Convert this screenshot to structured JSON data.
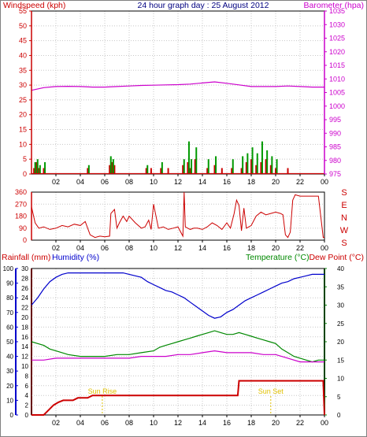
{
  "chart_data": [
    {
      "type": "bar",
      "title": "24 hour graph day : 25 August 2012",
      "left_axis_label": "Windspeed (kph)",
      "right_axis_label": "Barometer (hpa)",
      "left_ylim": [
        0,
        55
      ],
      "left_yticks": [
        "0",
        "5",
        "10",
        "15",
        "20",
        "25",
        "30",
        "35",
        "40",
        "45",
        "50",
        "55"
      ],
      "right_ylim": [
        975,
        1035
      ],
      "right_yticks": [
        "975",
        "980",
        "985",
        "990",
        "995",
        "1000",
        "1005",
        "1010",
        "1015",
        "1020",
        "1025",
        "1030",
        "1035"
      ],
      "xlim": [
        0,
        24
      ],
      "xticks": [
        "02",
        "04",
        "06",
        "08",
        "10",
        "12",
        "14",
        "16",
        "18",
        "20",
        "22",
        "00"
      ],
      "grid": true,
      "colors": {
        "windspeed": "#cc0000",
        "gust": "#009900",
        "barometer": "#cc00cc",
        "axis_left": "#cc0000",
        "axis_right": "#cc00cc",
        "title": "#000080"
      },
      "series": [
        {
          "key": "barometer",
          "axis": "right",
          "x": [
            0,
            1,
            2,
            3,
            4,
            5,
            6,
            7,
            8,
            9,
            10,
            11,
            12,
            13,
            14,
            15,
            16,
            17,
            18,
            19,
            20,
            21,
            22,
            23,
            24
          ],
          "y": [
            1005.8,
            1006.8,
            1007.2,
            1007.3,
            1007.2,
            1007.0,
            1007.0,
            1007.2,
            1007.4,
            1007.6,
            1007.7,
            1007.8,
            1007.9,
            1008.1,
            1008.5,
            1008.9,
            1008.4,
            1007.8,
            1007.2,
            1007.2,
            1007.2,
            1007.4,
            1007.2,
            1007.0,
            1007.0
          ]
        },
        {
          "key": "wind_speed",
          "axis": "left",
          "style": "bars",
          "x": [
            0.2,
            0.4,
            0.6,
            1.0,
            4.6,
            6.4,
            6.6,
            6.8,
            9.4,
            9.8,
            10.6,
            11.2,
            12.4,
            12.8,
            13.0,
            13.4,
            14.4,
            15.0,
            15.6,
            16.4,
            17.2,
            17.6,
            18.0,
            18.4,
            18.8,
            19.2,
            19.6,
            20.0,
            21.0
          ],
          "y": [
            2,
            4,
            2,
            2,
            2,
            3,
            4,
            3,
            2,
            2,
            2,
            2,
            3,
            4,
            2,
            5,
            2,
            3,
            2,
            2,
            2,
            4,
            5,
            3,
            4,
            5,
            3,
            2,
            2
          ]
        },
        {
          "key": "wind_gust",
          "axis": "left",
          "style": "bars",
          "x": [
            0.3,
            0.5,
            0.7,
            1.1,
            4.7,
            6.5,
            6.7,
            9.5,
            10.7,
            12.5,
            12.9,
            13.1,
            13.5,
            14.5,
            15.1,
            16.5,
            17.3,
            17.7,
            18.1,
            18.5,
            18.9,
            19.3,
            19.7,
            20.1
          ],
          "y": [
            4,
            5,
            3,
            4,
            3,
            6,
            5,
            3,
            4,
            5,
            11,
            5,
            9,
            5,
            6,
            5,
            6,
            7,
            9,
            7,
            11,
            8,
            6,
            5
          ]
        }
      ]
    },
    {
      "type": "line",
      "title": "",
      "left_ylim": [
        0,
        360
      ],
      "left_yticks": [
        "0",
        "90",
        "180",
        "270",
        "360"
      ],
      "compass_labels": [
        "S",
        "E",
        "N",
        "W",
        "S"
      ],
      "xlim": [
        0,
        24
      ],
      "xticks": [
        "02",
        "04",
        "06",
        "08",
        "10",
        "12",
        "14",
        "16",
        "18",
        "20",
        "22",
        "00"
      ],
      "grid": true,
      "colors": {
        "direction": "#cc0000",
        "axis": "#cc0000"
      },
      "series": [
        {
          "key": "wind_direction",
          "x": [
            0,
            0.3,
            0.6,
            1,
            1.5,
            2,
            2.5,
            3,
            3.5,
            4,
            4.4,
            4.8,
            5.2,
            5.6,
            6,
            6.4,
            6.5,
            6.8,
            7,
            7.2,
            7.5,
            7.8,
            8,
            8.5,
            9,
            9.3,
            9.6,
            9.8,
            10,
            10.4,
            10.8,
            11.2,
            11.6,
            12,
            12.4,
            12.5,
            12.6,
            12.8,
            13,
            13.3,
            13.6,
            14,
            14.4,
            14.8,
            15.2,
            15.6,
            16,
            16.3,
            16.6,
            16.8,
            17,
            17.2,
            17.4,
            17.6,
            18,
            18.4,
            18.8,
            19.2,
            19.6,
            20,
            20.4,
            20.6,
            20.8,
            21,
            21.2,
            21.4,
            21.6,
            22,
            22.5,
            23,
            23.5,
            23.9,
            24
          ],
          "y": [
            250,
            130,
            90,
            100,
            80,
            90,
            110,
            100,
            120,
            110,
            140,
            40,
            20,
            30,
            25,
            30,
            200,
            230,
            90,
            130,
            180,
            140,
            180,
            130,
            90,
            100,
            150,
            80,
            270,
            90,
            100,
            80,
            90,
            100,
            30,
            360,
            100,
            90,
            80,
            90,
            90,
            80,
            100,
            130,
            110,
            80,
            130,
            90,
            200,
            300,
            260,
            70,
            240,
            90,
            110,
            180,
            210,
            190,
            200,
            210,
            200,
            190,
            40,
            20,
            60,
            300,
            340,
            330,
            330,
            330,
            330,
            20,
            20
          ]
        }
      ]
    },
    {
      "type": "line",
      "title": "",
      "left_axis_labels": [
        "Rainfall (mm)",
        "Humidity (%)"
      ],
      "right_axis_labels": [
        "Temperature (°C)",
        "Dew Point (°C)"
      ],
      "humidity_ylim": [
        0,
        100
      ],
      "humidity_yticks": [
        "0",
        "10",
        "20",
        "30",
        "40",
        "50",
        "60",
        "70",
        "80",
        "90",
        "100"
      ],
      "rain_ylim": [
        0,
        30
      ],
      "rain_yticks": [
        "0",
        "2",
        "4",
        "6",
        "8",
        "10",
        "12",
        "14",
        "16",
        "18",
        "20",
        "22",
        "24",
        "26",
        "28",
        "30"
      ],
      "temp_ylim": [
        0,
        40
      ],
      "temp_yticks": [
        "0",
        "5",
        "10",
        "15",
        "20",
        "25",
        "30",
        "35",
        "40"
      ],
      "xlim": [
        0,
        24
      ],
      "xticks": [
        "02",
        "04",
        "06",
        "08",
        "10",
        "12",
        "14",
        "16",
        "18",
        "20",
        "22",
        "00"
      ],
      "grid": true,
      "annotations": [
        {
          "text": "Sun Rise",
          "x": 5.8
        },
        {
          "text": "Sun Set",
          "x": 19.6
        }
      ],
      "colors": {
        "humidity": "#0000cc",
        "rainfall": "#cc0000",
        "temperature": "#008800",
        "dewpoint": "#cc00cc",
        "sun": "#e0c000",
        "axis_rain": "#cc0000",
        "axis_humidity": "#0000cc",
        "axis_temp": "#008800",
        "label_dewpoint": "#cc0000"
      },
      "series": [
        {
          "key": "humidity",
          "axis": "humidity",
          "x": [
            0,
            0.5,
            1,
            1.5,
            2,
            2.5,
            3,
            4,
            5,
            6,
            7,
            7.5,
            8,
            9,
            9.5,
            10,
            10.5,
            11,
            11.5,
            12,
            12.5,
            13,
            13.5,
            14,
            14.5,
            15,
            15.5,
            16,
            16.5,
            17,
            17.5,
            18,
            18.5,
            19,
            19.5,
            20,
            20.5,
            21,
            21.5,
            22,
            22.5,
            23,
            23.5,
            24
          ],
          "y": [
            75,
            80,
            86,
            91,
            94,
            96,
            97,
            97,
            97,
            97,
            97,
            97,
            96,
            94,
            91,
            89,
            87,
            85,
            84,
            82,
            80,
            77,
            74,
            71,
            68,
            66,
            67,
            70,
            72,
            75,
            78,
            80,
            82,
            84,
            86,
            88,
            90,
            91,
            93,
            94,
            95,
            96,
            96,
            96
          ]
        },
        {
          "key": "temperature",
          "axis": "temp",
          "x": [
            0,
            0.5,
            1,
            1.5,
            2,
            2.5,
            3,
            4,
            5,
            6,
            7,
            8,
            9,
            10,
            10.5,
            11,
            11.5,
            12,
            12.5,
            13,
            13.5,
            14,
            14.5,
            15,
            15.5,
            16,
            16.5,
            17,
            17.5,
            18,
            18.5,
            19,
            19.5,
            20,
            20.5,
            21,
            21.5,
            22,
            22.5,
            23,
            23.5,
            24
          ],
          "y": [
            20,
            19.5,
            19,
            18,
            17.5,
            17,
            16.5,
            16,
            16,
            16,
            16.5,
            16.5,
            17,
            17.5,
            18.5,
            19,
            19.5,
            20,
            20.5,
            21,
            21.5,
            22,
            22.5,
            23,
            22.5,
            22,
            22,
            22.5,
            22,
            21.5,
            21,
            20.5,
            20,
            19.5,
            18,
            17,
            16,
            15.5,
            15,
            14.5,
            15,
            15
          ]
        },
        {
          "key": "dewpoint",
          "axis": "temp",
          "x": [
            0,
            1,
            2,
            3,
            4,
            5,
            6,
            7,
            8,
            9,
            10,
            11,
            12,
            13,
            14,
            15,
            16,
            17,
            18,
            19,
            20,
            21,
            22,
            23,
            24
          ],
          "y": [
            15,
            15,
            15.5,
            15.5,
            15.5,
            15.5,
            15.5,
            15.5,
            15.5,
            16,
            16,
            16,
            16.5,
            16.5,
            17,
            17.5,
            17,
            17,
            17,
            16.5,
            16.5,
            15.5,
            14.5,
            14.5,
            14.5
          ]
        },
        {
          "key": "rainfall",
          "axis": "rain",
          "x": [
            0,
            1,
            1.4,
            1.8,
            2.2,
            2.6,
            3,
            3.4,
            3.8,
            4.2,
            4.6,
            5,
            5.4,
            5.8,
            6.2,
            6.6,
            8,
            10,
            12,
            14,
            16,
            16.9,
            17,
            18,
            20,
            22,
            23.9,
            24
          ],
          "y": [
            0,
            0,
            1,
            2,
            2.6,
            3,
            3,
            3,
            3.5,
            3.5,
            3.5,
            4,
            4,
            4,
            4,
            4,
            4,
            4,
            4,
            4,
            4,
            4,
            7,
            7,
            7,
            7,
            7,
            0
          ]
        }
      ]
    }
  ]
}
